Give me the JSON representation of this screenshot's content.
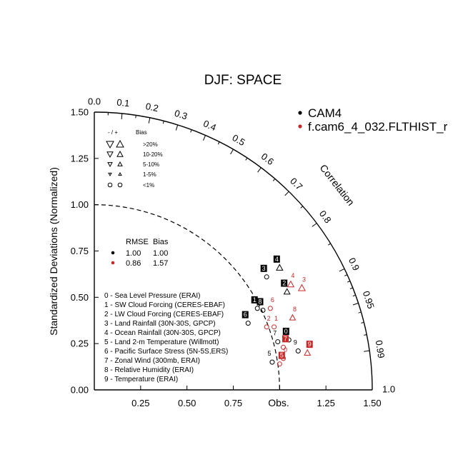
{
  "chart_data": {
    "type": "scatter",
    "subtype": "taylor-diagram",
    "title": "DJF: SPACE",
    "ylabel": "Standardized Deviations (Normalized)",
    "arc_label": "Correlation",
    "obs_label": "Obs.",
    "x_ticks": [
      "0.25",
      "0.50",
      "0.75",
      "1.25",
      "1.50"
    ],
    "y_ticks": [
      "0.00",
      "0.25",
      "0.50",
      "0.75",
      "1.00",
      "1.25",
      "1.50"
    ],
    "corr_ticks": [
      "0.0",
      "0.1",
      "0.2",
      "0.3",
      "0.4",
      "0.5",
      "0.6",
      "0.7",
      "0.8",
      "0.9",
      "0.95",
      "0.99",
      "1.0"
    ],
    "rmax": 1.5,
    "legend": [
      {
        "name": "CAM4",
        "color": "#000000"
      },
      {
        "name": "f.cam6_4_032.FLTHIST_r",
        "color": "#c62828"
      }
    ],
    "bias_legend": {
      "header_sign": "- / +",
      "header_bias": "Bias",
      "rows": [
        ">20%",
        "10-20%",
        "5-10%",
        "1-5%",
        "<1%"
      ]
    },
    "stats_table": {
      "headers": [
        "RMSE",
        "Bias"
      ],
      "rows": [
        {
          "color": "#000000",
          "rmse": "1.00",
          "bias": "1.00"
        },
        {
          "color": "#c62828",
          "rmse": "0.86",
          "bias": "1.57"
        }
      ]
    },
    "variables": [
      "0 - Sea Level Pressure (ERAI)",
      "1 - SW Cloud Forcing (CERES-EBAF)",
      "2 - LW Cloud Forcing (CERES-EBAF)",
      "3 - Land Rainfall (30N-30S, GPCP)",
      "4 - Ocean Rainfall (30N-30S, GPCP)",
      "5 - Land 2-m Temperature (Willmott)",
      "6 - Pacific Surface Stress (5N-5S,ERS)",
      "7 - Zonal Wind (300mb, ERAI)",
      "8 - Relative Humidity (ERAI)",
      "9 - Temperature (ERAI)"
    ],
    "series": [
      {
        "name": "CAM4",
        "color": "#000000",
        "points": [
          {
            "label": "0",
            "x": 1.05,
            "y": 0.27
          },
          {
            "label": "1",
            "x": 0.88,
            "y": 0.44
          },
          {
            "label": "2",
            "x": 1.04,
            "y": 0.53
          },
          {
            "label": "3",
            "x": 0.93,
            "y": 0.61
          },
          {
            "label": "4",
            "x": 1.0,
            "y": 0.66
          },
          {
            "label": "5",
            "x": 0.96,
            "y": 0.15
          },
          {
            "label": "6",
            "x": 0.83,
            "y": 0.36
          },
          {
            "label": "7",
            "x": 0.99,
            "y": 0.26
          },
          {
            "label": "8",
            "x": 0.91,
            "y": 0.43
          },
          {
            "label": "9",
            "x": 1.1,
            "y": 0.21
          }
        ]
      },
      {
        "name": "f.cam6_4_032.FLTHIST_r",
        "color": "#c62828",
        "points": [
          {
            "label": "0",
            "x": 1.02,
            "y": 0.17
          },
          {
            "label": "1",
            "x": 0.97,
            "y": 0.34
          },
          {
            "label": "2",
            "x": 0.93,
            "y": 0.34
          },
          {
            "label": "3",
            "x": 1.12,
            "y": 0.55
          },
          {
            "label": "4",
            "x": 1.06,
            "y": 0.57
          },
          {
            "label": "5",
            "x": 1.0,
            "y": 0.14
          },
          {
            "label": "6",
            "x": 0.95,
            "y": 0.44
          },
          {
            "label": "7",
            "x": 1.02,
            "y": 0.23
          },
          {
            "label": "8",
            "x": 1.07,
            "y": 0.39
          },
          {
            "label": "9",
            "x": 1.15,
            "y": 0.2
          }
        ]
      }
    ]
  }
}
